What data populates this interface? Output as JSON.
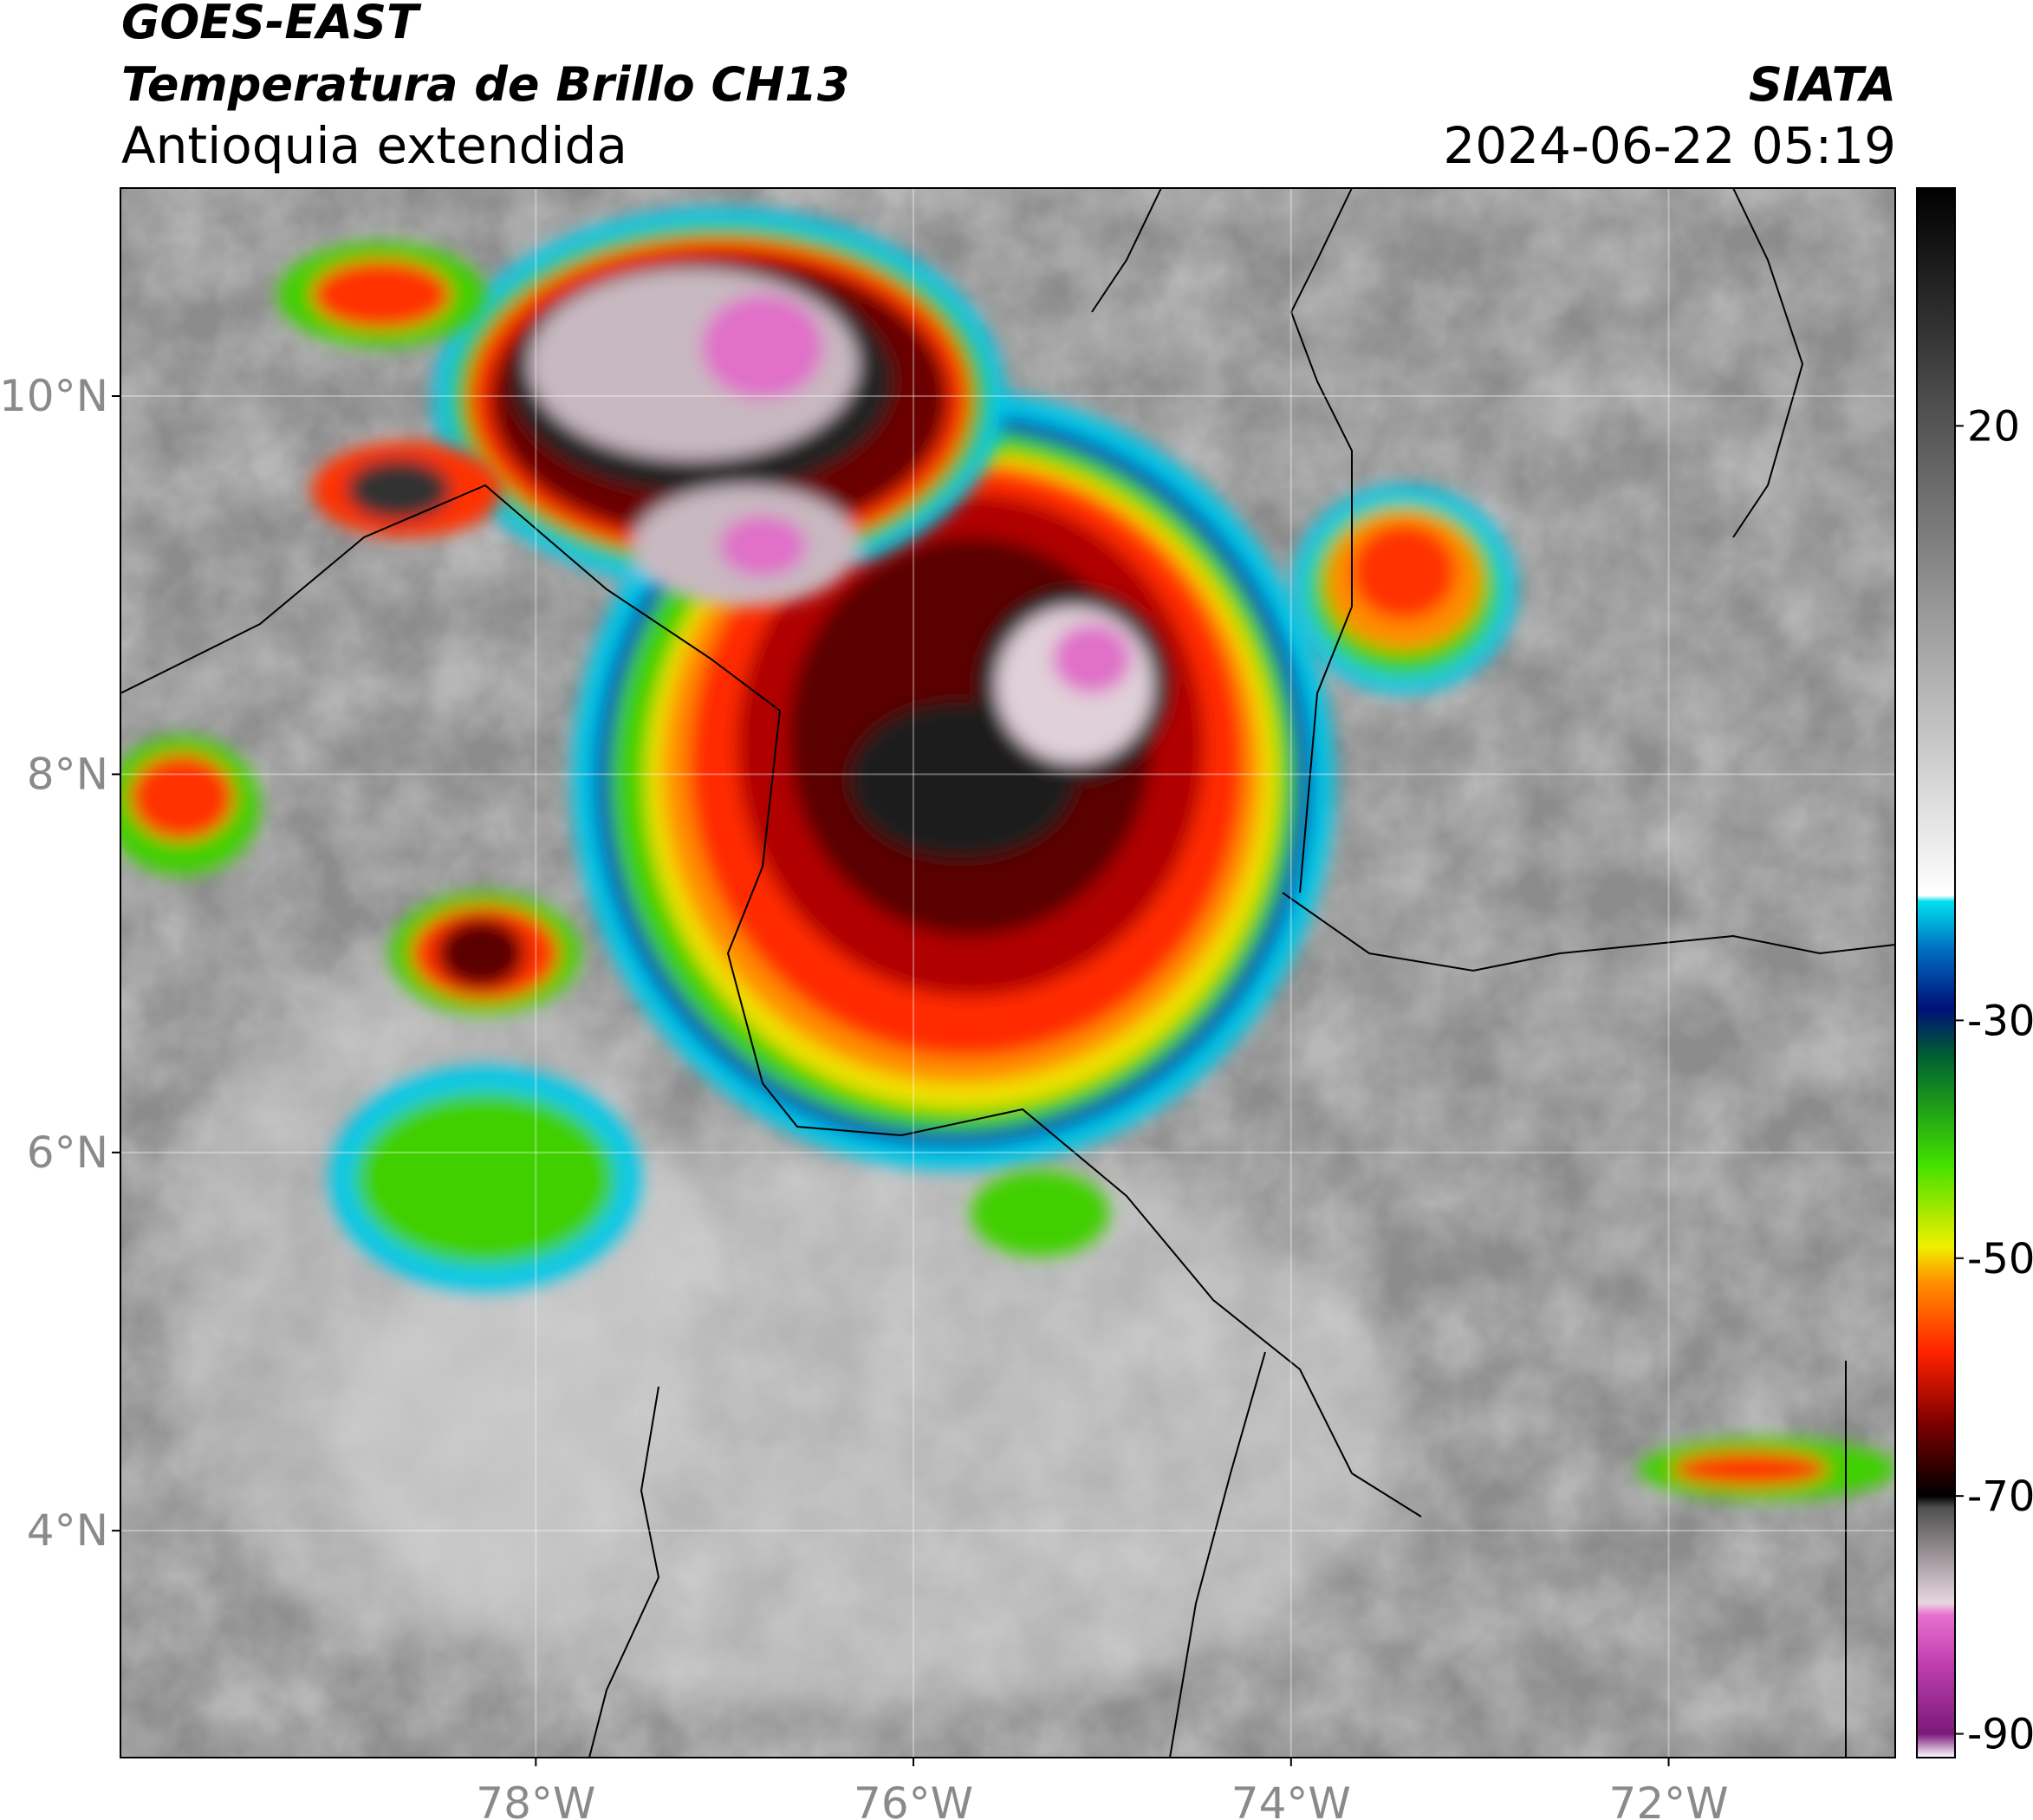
{
  "header": {
    "satellite": "GOES-EAST",
    "product": "Temperatura de Brillo CH13",
    "region": "Antioquia extendida",
    "source": "SIATA",
    "datetime": "2024-06-22 05:19"
  },
  "map": {
    "lon_range": [
      -80.2,
      -70.8
    ],
    "lat_range": [
      2.8,
      11.1
    ],
    "lat_ticks": [
      {
        "value": 10,
        "label": "10°N"
      },
      {
        "value": 8,
        "label": "8°N"
      },
      {
        "value": 6,
        "label": "6°N"
      },
      {
        "value": 4,
        "label": "4°N"
      }
    ],
    "lon_ticks": [
      {
        "value": -78,
        "label": "78°W"
      },
      {
        "value": -76,
        "label": "76°W"
      },
      {
        "value": -74,
        "label": "74°W"
      },
      {
        "value": -72,
        "label": "72°W"
      }
    ],
    "grid": true
  },
  "colorbar": {
    "range": [
      -92,
      40
    ],
    "ticks": [
      20,
      -30,
      -50,
      -70,
      -90
    ],
    "stops": [
      {
        "value": -92,
        "color": "#ffffff"
      },
      {
        "value": -90,
        "color": "#7a1a7a"
      },
      {
        "value": -84,
        "color": "#c040b0"
      },
      {
        "value": -80,
        "color": "#e870d0"
      },
      {
        "value": -79,
        "color": "#e8d8e0"
      },
      {
        "value": -71,
        "color": "#505050"
      },
      {
        "value": -70,
        "color": "#000000"
      },
      {
        "value": -64,
        "color": "#7a0000"
      },
      {
        "value": -58,
        "color": "#ff2000"
      },
      {
        "value": -52,
        "color": "#ff9000"
      },
      {
        "value": -49,
        "color": "#f0f000"
      },
      {
        "value": -42,
        "color": "#40e000"
      },
      {
        "value": -33,
        "color": "#006030"
      },
      {
        "value": -29,
        "color": "#00107a"
      },
      {
        "value": -24,
        "color": "#0070c0"
      },
      {
        "value": -20,
        "color": "#00e0f0"
      },
      {
        "value": -19.5,
        "color": "#ffffff"
      },
      {
        "value": 40,
        "color": "#000000"
      }
    ]
  }
}
